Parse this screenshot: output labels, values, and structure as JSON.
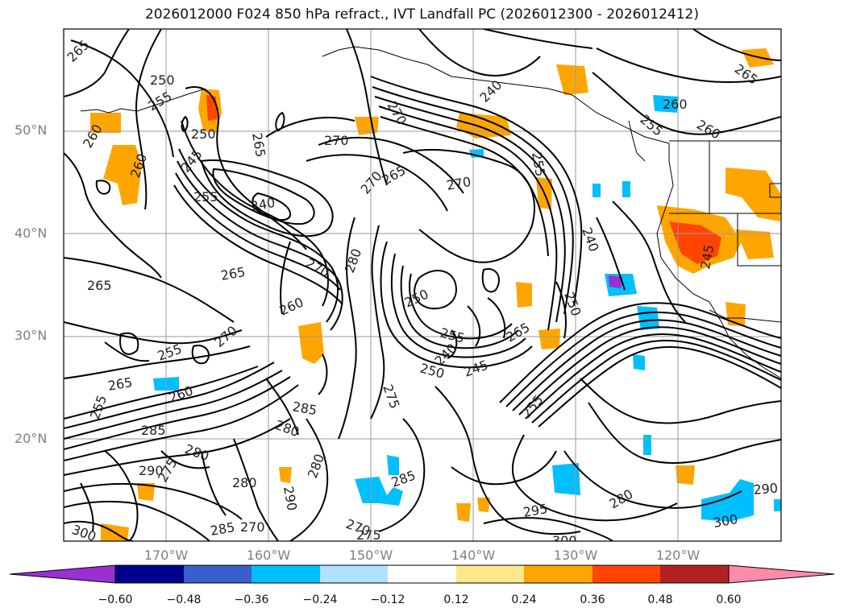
{
  "title": "2026012000 F024 850 hPa refract., IVT Landfall PC (2026012300 - 2026012412)",
  "lat_labels": [
    "50°N",
    "40°N",
    "30°N",
    "20°N"
  ],
  "lon_labels": [
    "170°W",
    "160°W",
    "150°W",
    "140°W",
    "130°W",
    "120°W"
  ],
  "colorbar": {
    "colors": [
      "#9a30d0",
      "#00008b",
      "#3a5fcd",
      "#00bfff",
      "#b0e2ff",
      "#ffffff",
      "#ffe88a",
      "#ffa500",
      "#ff4500",
      "#b22222",
      "#ff8aaa"
    ],
    "ticks": [
      "−0.60",
      "−0.48",
      "−0.36",
      "−0.24",
      "−0.12",
      "0.12",
      "0.24",
      "0.36",
      "0.48",
      "0.60"
    ]
  },
  "contour_labels": [
    "265",
    "250",
    "255",
    "260",
    "265",
    "270",
    "250",
    "245",
    "240",
    "255",
    "260",
    "270",
    "265",
    "270",
    "270",
    "240",
    "255",
    "240",
    "260",
    "255",
    "260",
    "265",
    "265",
    "280",
    "270",
    "265",
    "260",
    "250",
    "255",
    "255",
    "240",
    "245",
    "275",
    "265",
    "270",
    "250",
    "265",
    "255",
    "260",
    "285",
    "285",
    "280",
    "280",
    "290",
    "280",
    "290",
    "275",
    "285",
    "295",
    "270",
    "280",
    "300",
    "300",
    "290",
    "300",
    "280",
    "285",
    "270",
    "275",
    "250",
    "245",
    "255"
  ]
}
